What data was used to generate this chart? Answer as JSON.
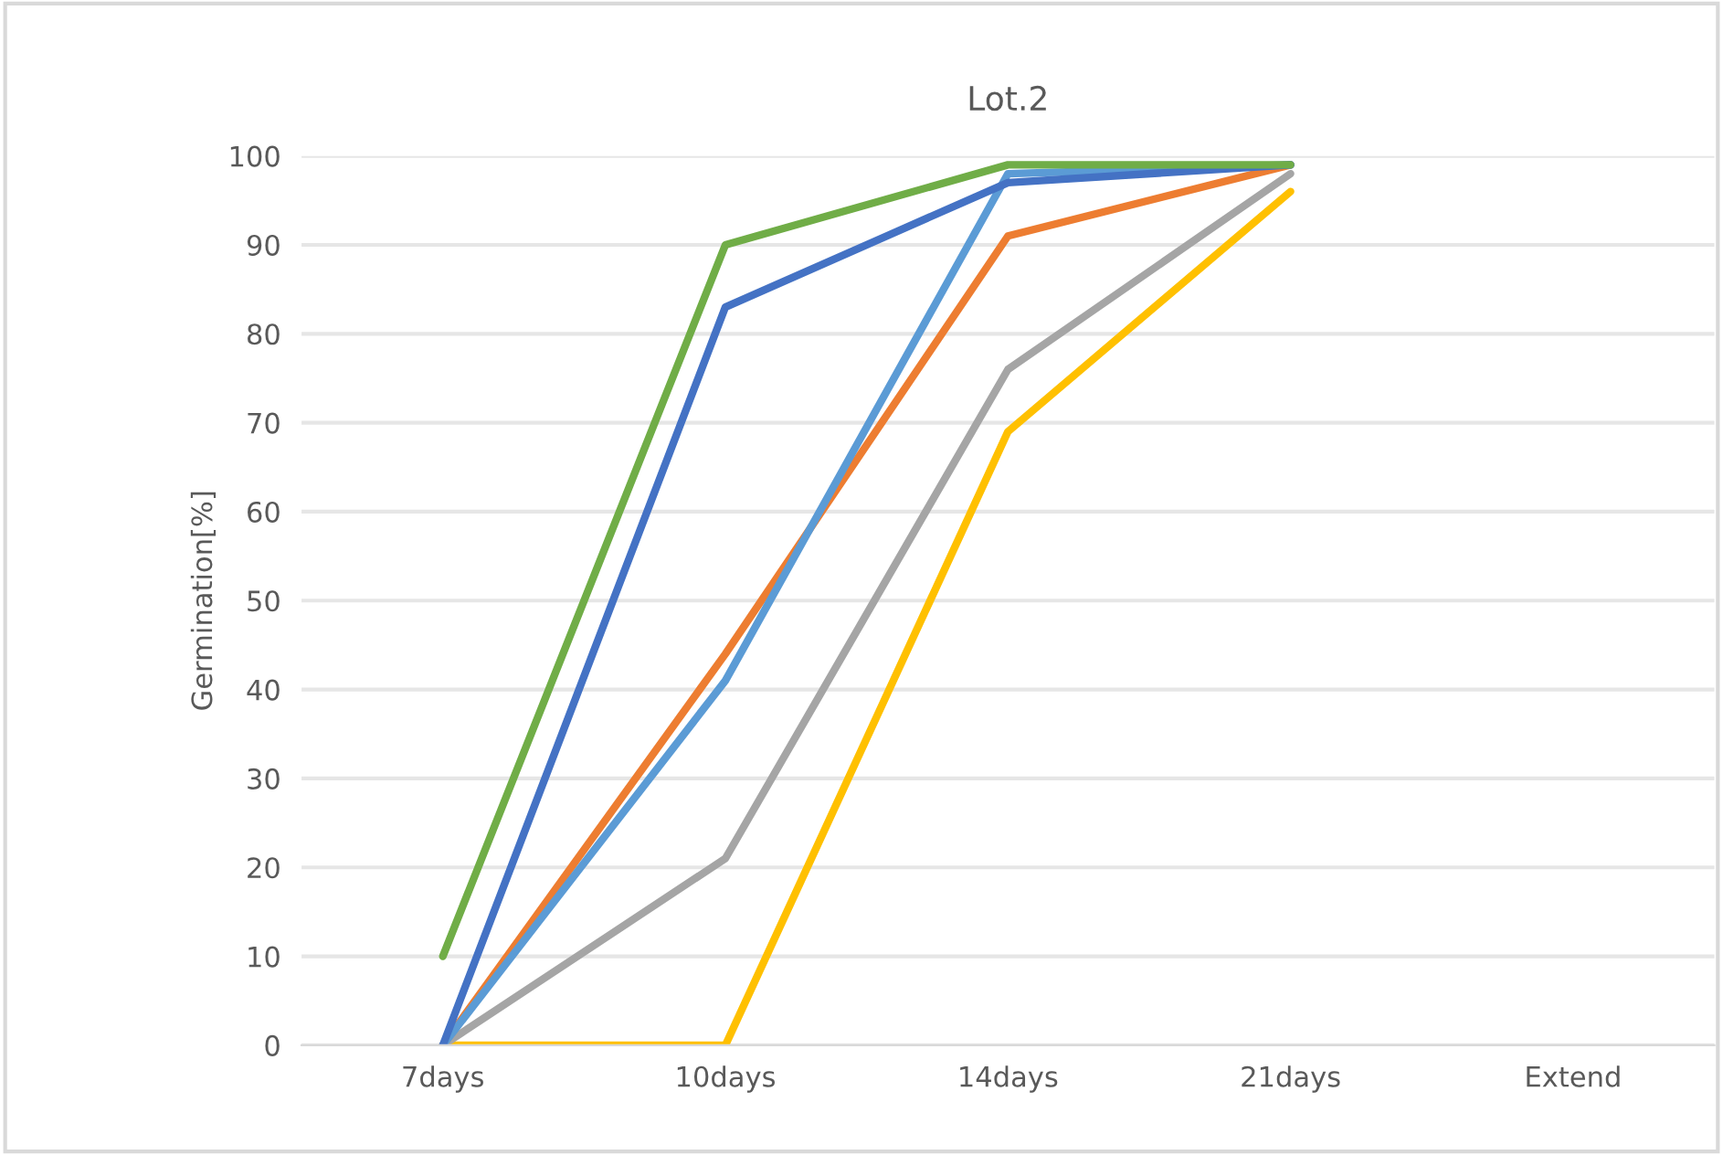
{
  "chart_data": {
    "type": "line",
    "title": "Lot.2",
    "ylabel": "Germination[%]",
    "categories": [
      "7days",
      "10days",
      "14days",
      "21days",
      "Extend"
    ],
    "series": [
      {
        "color": "#ffc000",
        "values": [
          0,
          0,
          69,
          96,
          null
        ]
      },
      {
        "color": "#a5a5a5",
        "values": [
          0,
          21,
          76,
          98,
          null
        ]
      },
      {
        "color": "#ed7d31",
        "values": [
          0,
          44,
          91,
          99,
          null
        ]
      },
      {
        "color": "#5b9bd5",
        "values": [
          0,
          41,
          98,
          99,
          null
        ]
      },
      {
        "color": "#4472c4",
        "values": [
          0,
          83,
          97,
          99,
          null
        ]
      },
      {
        "color": "#70ad47",
        "values": [
          10,
          90,
          99,
          99,
          null
        ]
      }
    ],
    "ylim": [
      0,
      100
    ],
    "yticks": [
      0,
      10,
      20,
      30,
      40,
      50,
      60,
      70,
      80,
      90,
      100
    ],
    "grid": "y",
    "marker": "none",
    "line_style": "solid"
  }
}
